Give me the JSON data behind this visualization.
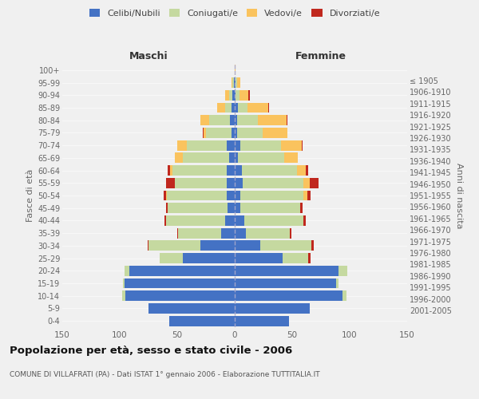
{
  "age_groups": [
    "0-4",
    "5-9",
    "10-14",
    "15-19",
    "20-24",
    "25-29",
    "30-34",
    "35-39",
    "40-44",
    "45-49",
    "50-54",
    "55-59",
    "60-64",
    "65-69",
    "70-74",
    "75-79",
    "80-84",
    "85-89",
    "90-94",
    "95-99",
    "100+"
  ],
  "birth_years": [
    "2001-2005",
    "1996-2000",
    "1991-1995",
    "1986-1990",
    "1981-1985",
    "1976-1980",
    "1971-1975",
    "1966-1970",
    "1961-1965",
    "1956-1960",
    "1951-1955",
    "1946-1950",
    "1941-1945",
    "1936-1940",
    "1931-1935",
    "1926-1930",
    "1921-1925",
    "1916-1920",
    "1911-1915",
    "1906-1910",
    "≤ 1905"
  ],
  "maschi_celibi": [
    57,
    75,
    95,
    96,
    92,
    45,
    30,
    12,
    8,
    6,
    7,
    7,
    7,
    5,
    7,
    3,
    4,
    3,
    2,
    1,
    0
  ],
  "maschi_coniugati": [
    0,
    0,
    3,
    1,
    4,
    20,
    45,
    37,
    52,
    52,
    52,
    45,
    47,
    40,
    35,
    22,
    18,
    5,
    3,
    1,
    0
  ],
  "maschi_vedovi": [
    0,
    0,
    0,
    0,
    0,
    0,
    0,
    0,
    0,
    0,
    1,
    0,
    2,
    7,
    8,
    2,
    8,
    7,
    3,
    1,
    0
  ],
  "maschi_divorziati": [
    0,
    0,
    0,
    0,
    0,
    0,
    1,
    1,
    1,
    2,
    2,
    8,
    2,
    0,
    0,
    1,
    0,
    0,
    0,
    0,
    0
  ],
  "femmine_celibi": [
    47,
    65,
    94,
    88,
    90,
    42,
    22,
    10,
    8,
    5,
    5,
    7,
    6,
    3,
    5,
    2,
    2,
    3,
    1,
    1,
    0
  ],
  "femmine_coniugati": [
    0,
    0,
    3,
    2,
    8,
    22,
    45,
    38,
    52,
    52,
    55,
    53,
    48,
    40,
    35,
    22,
    18,
    8,
    3,
    1,
    0
  ],
  "femmine_vedovi": [
    0,
    0,
    0,
    0,
    0,
    0,
    0,
    0,
    0,
    0,
    3,
    5,
    8,
    12,
    18,
    22,
    25,
    18,
    8,
    3,
    1
  ],
  "femmine_divorziati": [
    0,
    0,
    0,
    0,
    0,
    2,
    2,
    1,
    2,
    2,
    3,
    8,
    2,
    0,
    1,
    0,
    1,
    1,
    1,
    0,
    0
  ],
  "colors": {
    "celibi": "#4472c4",
    "coniugati": "#c5d9a0",
    "vedovi": "#fac35e",
    "divorziati": "#c0281e"
  },
  "title": "Popolazione per età, sesso e stato civile - 2006",
  "subtitle": "COMUNE DI VILLAFRATI (PA) - Dati ISTAT 1° gennaio 2006 - Elaborazione TUTTITALIA.IT",
  "ylabel_left": "Fasce di età",
  "ylabel_right": "Anni di nascita",
  "xlabel_left": "Maschi",
  "xlabel_right": "Femmine",
  "xlim": 150,
  "bg_color": "#f0f0f0"
}
